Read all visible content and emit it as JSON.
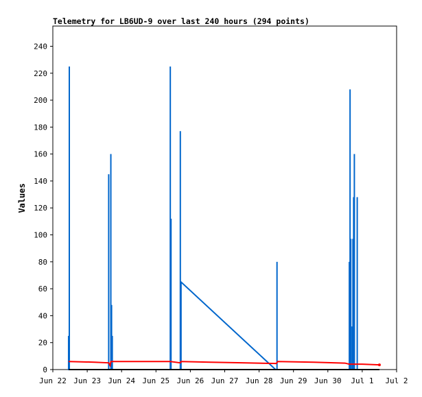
{
  "chart_data": {
    "type": "line",
    "title": "Telemetry for LB6UD-9 over last 240 hours (294 points)",
    "xlabel": "",
    "ylabel": "Values",
    "x_ticks": [
      "Jun 22",
      "Jun 23",
      "Jun 24",
      "Jun 25",
      "Jun 26",
      "Jun 27",
      "Jun 28",
      "Jun 29",
      "Jun 30",
      "Jul 1",
      "Jul 2"
    ],
    "y_ticks": [
      "0",
      "20",
      "40",
      "60",
      "80",
      "100",
      "120",
      "140",
      "160",
      "180",
      "200",
      "220",
      "240"
    ],
    "xlim": [
      "Jun 22",
      "Jul 2"
    ],
    "ylim": [
      0,
      255
    ],
    "grid": false,
    "legend": "none",
    "series": [
      {
        "color": "#0066cc",
        "points": [
          [
            "Jun 22 11:00",
            0
          ],
          [
            "Jun 22 11:00",
            25
          ],
          [
            "Jun 22 11:00",
            0
          ],
          [
            "Jun 22 11:30",
            0
          ],
          [
            "Jun 22 11:30",
            225
          ],
          [
            "Jun 22 11:30",
            0
          ],
          [
            "Jun 23 15:00",
            0
          ],
          [
            "Jun 23 15:00",
            145
          ],
          [
            "Jun 23 15:00",
            0
          ],
          [
            "Jun 23 16:30",
            0
          ],
          [
            "Jun 23 16:30",
            160
          ],
          [
            "Jun 23 16:30",
            0
          ],
          [
            "Jun 23 17:00",
            0
          ],
          [
            "Jun 23 17:00",
            48
          ],
          [
            "Jun 23 17:00",
            0
          ],
          [
            "Jun 23 17:30",
            0
          ],
          [
            "Jun 23 17:30",
            25
          ],
          [
            "Jun 23 17:30",
            0
          ],
          [
            "Jun 25 10:00",
            0
          ],
          [
            "Jun 25 10:00",
            225
          ],
          [
            "Jun 25 10:00",
            0
          ],
          [
            "Jun 25 10:30",
            0
          ],
          [
            "Jun 25 10:30",
            112
          ],
          [
            "Jun 25 10:30",
            0
          ],
          [
            "Jun 25 17:00",
            0
          ],
          [
            "Jun 25 17:00",
            177
          ],
          [
            "Jun 25 17:00",
            0
          ],
          [
            "Jun 25 17:30",
            0
          ],
          [
            "Jun 25 17:30",
            65
          ],
          [
            "Jun 28 11:30",
            0
          ],
          [
            "Jun 28 12:30",
            0
          ],
          [
            "Jun 28 12:30",
            80
          ],
          [
            "Jun 28 12:30",
            0
          ],
          [
            "Jun 30 15:00",
            0
          ],
          [
            "Jun 30 15:00",
            80
          ],
          [
            "Jun 30 15:00",
            0
          ],
          [
            "Jun 30 15:30",
            0
          ],
          [
            "Jun 30 15:30",
            208
          ],
          [
            "Jun 30 15:30",
            0
          ],
          [
            "Jun 30 16:00",
            0
          ],
          [
            "Jun 30 16:00",
            97
          ],
          [
            "Jun 30 16:00",
            0
          ],
          [
            "Jun 30 17:00",
            0
          ],
          [
            "Jun 30 17:00",
            32
          ],
          [
            "Jun 30 17:00",
            0
          ],
          [
            "Jun 30 17:30",
            0
          ],
          [
            "Jun 30 17:30",
            97
          ],
          [
            "Jun 30 17:30",
            0
          ],
          [
            "Jun 30 18:00",
            0
          ],
          [
            "Jun 30 18:00",
            128
          ],
          [
            "Jun 30 18:00",
            0
          ],
          [
            "Jun 30 18:30",
            0
          ],
          [
            "Jun 30 18:30",
            160
          ],
          [
            "Jun 30 18:30",
            0
          ],
          [
            "Jun 30 20:30",
            0
          ],
          [
            "Jun 30 20:30",
            128
          ],
          [
            "Jun 30 20:30",
            0
          ]
        ]
      },
      {
        "color": "#ff0000",
        "points": [
          [
            "Jun 22 11:00",
            6
          ],
          [
            "Jun 23 05:00",
            5.5
          ],
          [
            "Jun 23 15:00",
            5
          ],
          [
            "Jun 23 16:00",
            3
          ],
          [
            "Jun 23 16:30",
            6
          ],
          [
            "Jun 25 10:00",
            6
          ],
          [
            "Jun 25 17:00",
            5
          ],
          [
            "Jun 25 17:30",
            6
          ],
          [
            "Jun 26 14:00",
            5.5
          ],
          [
            "Jun 27 12:00",
            5
          ],
          [
            "Jun 28 12:00",
            4.5
          ],
          [
            "Jun 28 13:00",
            6
          ],
          [
            "Jun 29 14:00",
            5.5
          ],
          [
            "Jun 30 12:00",
            4.8
          ],
          [
            "Jun 30 15:00",
            4
          ],
          [
            "Jul 1 00:00",
            4
          ],
          [
            "Jul 1 12:00",
            3.5
          ]
        ]
      },
      {
        "color": "#000000",
        "points": [
          [
            "Jun 22 11:00",
            0
          ],
          [
            "Jul 1 12:00",
            0
          ]
        ]
      }
    ]
  }
}
